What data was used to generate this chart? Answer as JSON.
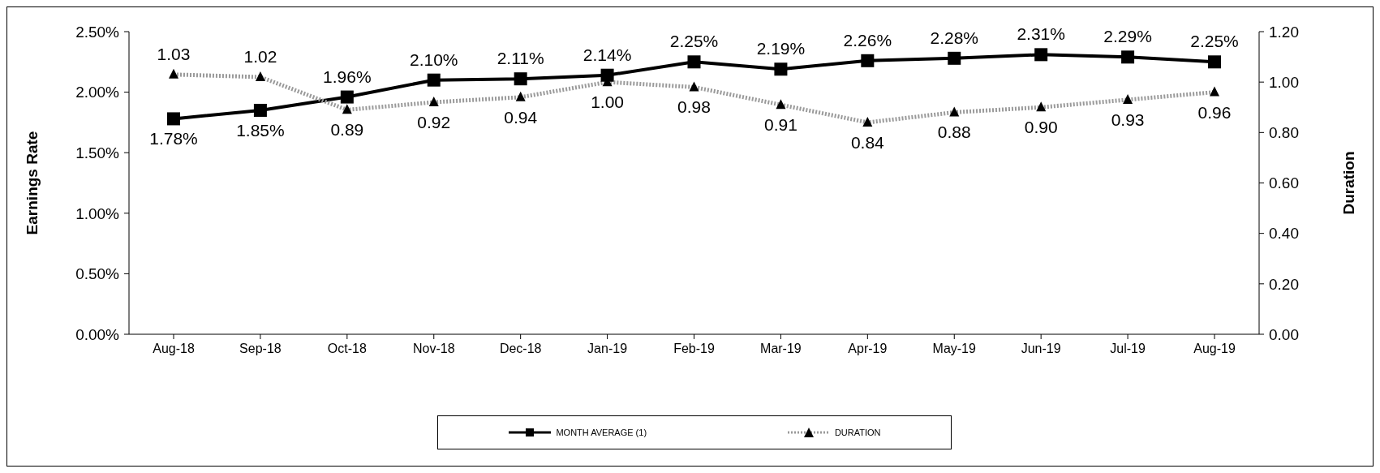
{
  "chart_data": {
    "type": "line",
    "categories": [
      "Aug-18",
      "Sep-18",
      "Oct-18",
      "Nov-18",
      "Dec-18",
      "Jan-19",
      "Feb-19",
      "Mar-19",
      "Apr-19",
      "May-19",
      "Jun-19",
      "Jul-19",
      "Aug-19"
    ],
    "series": [
      {
        "name": "MONTH AVERAGE (1)",
        "color": "#000000",
        "marker": "square",
        "line_style": "solid",
        "values": [
          1.78,
          1.85,
          1.96,
          2.1,
          2.11,
          2.14,
          2.25,
          2.19,
          2.26,
          2.28,
          2.31,
          2.29,
          2.25
        ],
        "value_labels": [
          "1.78%",
          "1.85%",
          "1.96%",
          "2.10%",
          "2.11%",
          "2.14%",
          "2.25%",
          "2.19%",
          "2.26%",
          "2.28%",
          "2.31%",
          "2.29%",
          "2.25%"
        ]
      },
      {
        "name": "DURATION",
        "color": "#9a9a9a",
        "marker": "triangle",
        "line_style": "dotted",
        "axis": "y2",
        "values": [
          1.03,
          1.02,
          0.89,
          0.92,
          0.94,
          1.0,
          0.98,
          0.91,
          0.84,
          0.88,
          0.9,
          0.93,
          0.96
        ],
        "value_labels": [
          "1.03",
          "1.02",
          "0.89",
          "0.92",
          "0.94",
          "1.00",
          "0.98",
          "0.91",
          "0.84",
          "0.88",
          "0.90",
          "0.93",
          "0.96"
        ]
      }
    ],
    "ylabel": "Earnings Rate",
    "y2label": "Duration",
    "ylim": [
      0,
      2.5
    ],
    "yticks": [
      {
        "value": 0,
        "label": "0.00%"
      },
      {
        "value": 0.5,
        "label": "0.50%"
      },
      {
        "value": 1,
        "label": "1.00%"
      },
      {
        "value": 1.5,
        "label": "1.50%"
      },
      {
        "value": 2,
        "label": "2.00%"
      },
      {
        "value": 2.5,
        "label": "2.50%"
      }
    ],
    "y2lim": [
      0,
      1.2
    ],
    "y2ticks": [
      {
        "value": 0,
        "label": "0.00"
      },
      {
        "value": 0.2,
        "label": "0.20"
      },
      {
        "value": 0.4,
        "label": "0.40"
      },
      {
        "value": 0.6,
        "label": "0.60"
      },
      {
        "value": 0.8,
        "label": "0.80"
      },
      {
        "value": 1,
        "label": "1.00"
      },
      {
        "value": 1.2,
        "label": "1.20"
      }
    ],
    "grid": false,
    "legend": "bottom"
  }
}
